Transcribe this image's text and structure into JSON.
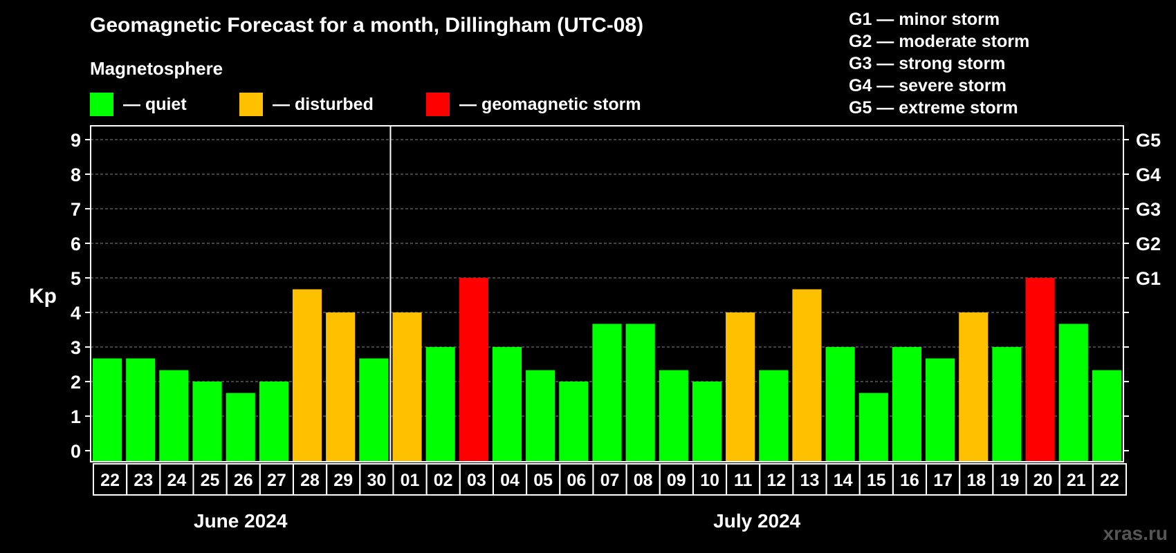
{
  "title": "Geomagnetic Forecast for a month, Dillingham (UTC-08)",
  "legend": {
    "heading": "Magnetosphere",
    "items": [
      {
        "label": "— quiet",
        "color": "#00ff00"
      },
      {
        "label": "— disturbed",
        "color": "#ffc000"
      },
      {
        "label": "— geomagnetic storm",
        "color": "#ff0000"
      }
    ]
  },
  "storm_levels": [
    "G1 — minor storm",
    "G2 — moderate storm",
    "G3 — strong storm",
    "G4 — severe storm",
    "G5 — extreme storm"
  ],
  "watermark": "xras.ru",
  "chart_data": {
    "type": "bar",
    "ylabel": "Kp",
    "ylim": [
      0,
      9
    ],
    "yticks": [
      "0",
      "1",
      "2",
      "3",
      "4",
      "5",
      "6",
      "7",
      "8",
      "9"
    ],
    "right_axis_labels": [
      {
        "value": 5,
        "label": "G1"
      },
      {
        "value": 6,
        "label": "G2"
      },
      {
        "value": 7,
        "label": "G3"
      },
      {
        "value": 8,
        "label": "G4"
      },
      {
        "value": 9,
        "label": "G5"
      }
    ],
    "grid": "dashed horizontal",
    "months": [
      {
        "label": "June 2024",
        "count": 9
      },
      {
        "label": "July 2024",
        "count": 22
      }
    ],
    "categories": [
      "22",
      "23",
      "24",
      "25",
      "26",
      "27",
      "28",
      "29",
      "30",
      "01",
      "02",
      "03",
      "04",
      "05",
      "06",
      "07",
      "08",
      "09",
      "10",
      "11",
      "12",
      "13",
      "14",
      "15",
      "16",
      "17",
      "18",
      "19",
      "20",
      "21",
      "22"
    ],
    "values": [
      2.67,
      2.67,
      2.33,
      2.0,
      1.67,
      2.0,
      4.67,
      4.0,
      2.67,
      4.0,
      3.0,
      5.0,
      3.0,
      2.33,
      2.0,
      3.67,
      3.67,
      2.33,
      2.0,
      4.0,
      2.33,
      4.67,
      3.0,
      1.67,
      3.0,
      2.67,
      4.0,
      3.0,
      5.0,
      3.67,
      2.33
    ],
    "status": [
      "quiet",
      "quiet",
      "quiet",
      "quiet",
      "quiet",
      "quiet",
      "disturbed",
      "disturbed",
      "quiet",
      "disturbed",
      "quiet",
      "storm",
      "quiet",
      "quiet",
      "quiet",
      "quiet",
      "quiet",
      "quiet",
      "quiet",
      "disturbed",
      "quiet",
      "disturbed",
      "quiet",
      "quiet",
      "quiet",
      "quiet",
      "disturbed",
      "quiet",
      "storm",
      "quiet",
      "quiet"
    ],
    "status_colors": {
      "quiet": "#00ff00",
      "disturbed": "#ffc000",
      "storm": "#ff0000"
    }
  }
}
